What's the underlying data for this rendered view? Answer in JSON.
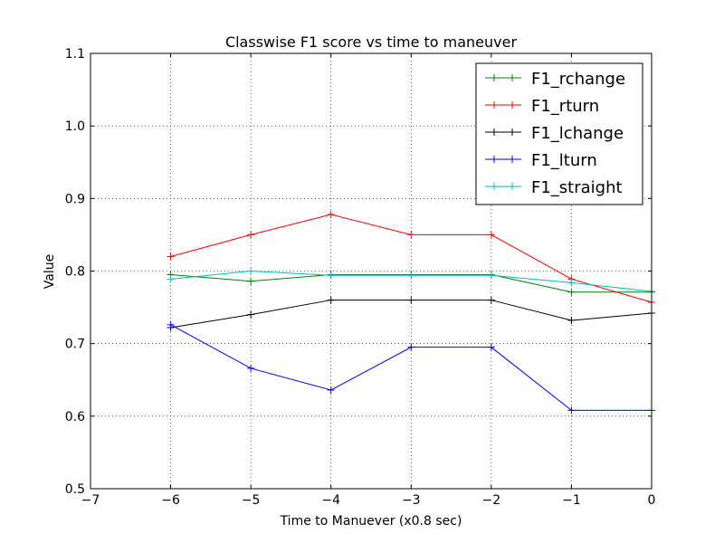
{
  "chart_data": {
    "type": "line",
    "title": "Classwise F1 score vs time to maneuver",
    "xlabel": "Time to Manuever (x0.8 sec)",
    "ylabel": "Value",
    "xlim": [
      -7,
      0
    ],
    "ylim": [
      0.5,
      1.1
    ],
    "xticks": [
      -7,
      -6,
      -5,
      -4,
      -3,
      -2,
      -1,
      0
    ],
    "xtick_labels": [
      "−7",
      "−6",
      "−5",
      "−4",
      "−3",
      "−2",
      "−1",
      "0"
    ],
    "yticks": [
      0.5,
      0.6,
      0.7,
      0.8,
      0.9,
      1.0,
      1.1
    ],
    "ytick_labels": [
      "0.5",
      "0.6",
      "0.7",
      "0.8",
      "0.9",
      "1.0",
      "1.1"
    ],
    "grid": true,
    "legend_position": "top-right",
    "x": [
      -6,
      -5,
      -4,
      -3,
      -2,
      -1,
      0
    ],
    "series": [
      {
        "name": "F1_rchange",
        "color": "#008000",
        "values": [
          0.795,
          0.786,
          0.795,
          0.795,
          0.795,
          0.771,
          0.771
        ]
      },
      {
        "name": "F1_rturn",
        "color": "#ff0000",
        "values": [
          0.82,
          0.85,
          0.878,
          0.85,
          0.85,
          0.789,
          0.757
        ]
      },
      {
        "name": "F1_lchange",
        "color": "#000000",
        "values": [
          0.722,
          0.74,
          0.76,
          0.76,
          0.76,
          0.732,
          0.742
        ]
      },
      {
        "name": "F1_lturn",
        "color": "#0000ff",
        "values": [
          0.726,
          0.666,
          0.636,
          0.695,
          0.695,
          0.608,
          0.608
        ]
      },
      {
        "name": "F1_straight",
        "color": "#00bfbf",
        "values": [
          0.789,
          0.8,
          0.794,
          0.794,
          0.794,
          0.784,
          0.772
        ]
      }
    ]
  }
}
